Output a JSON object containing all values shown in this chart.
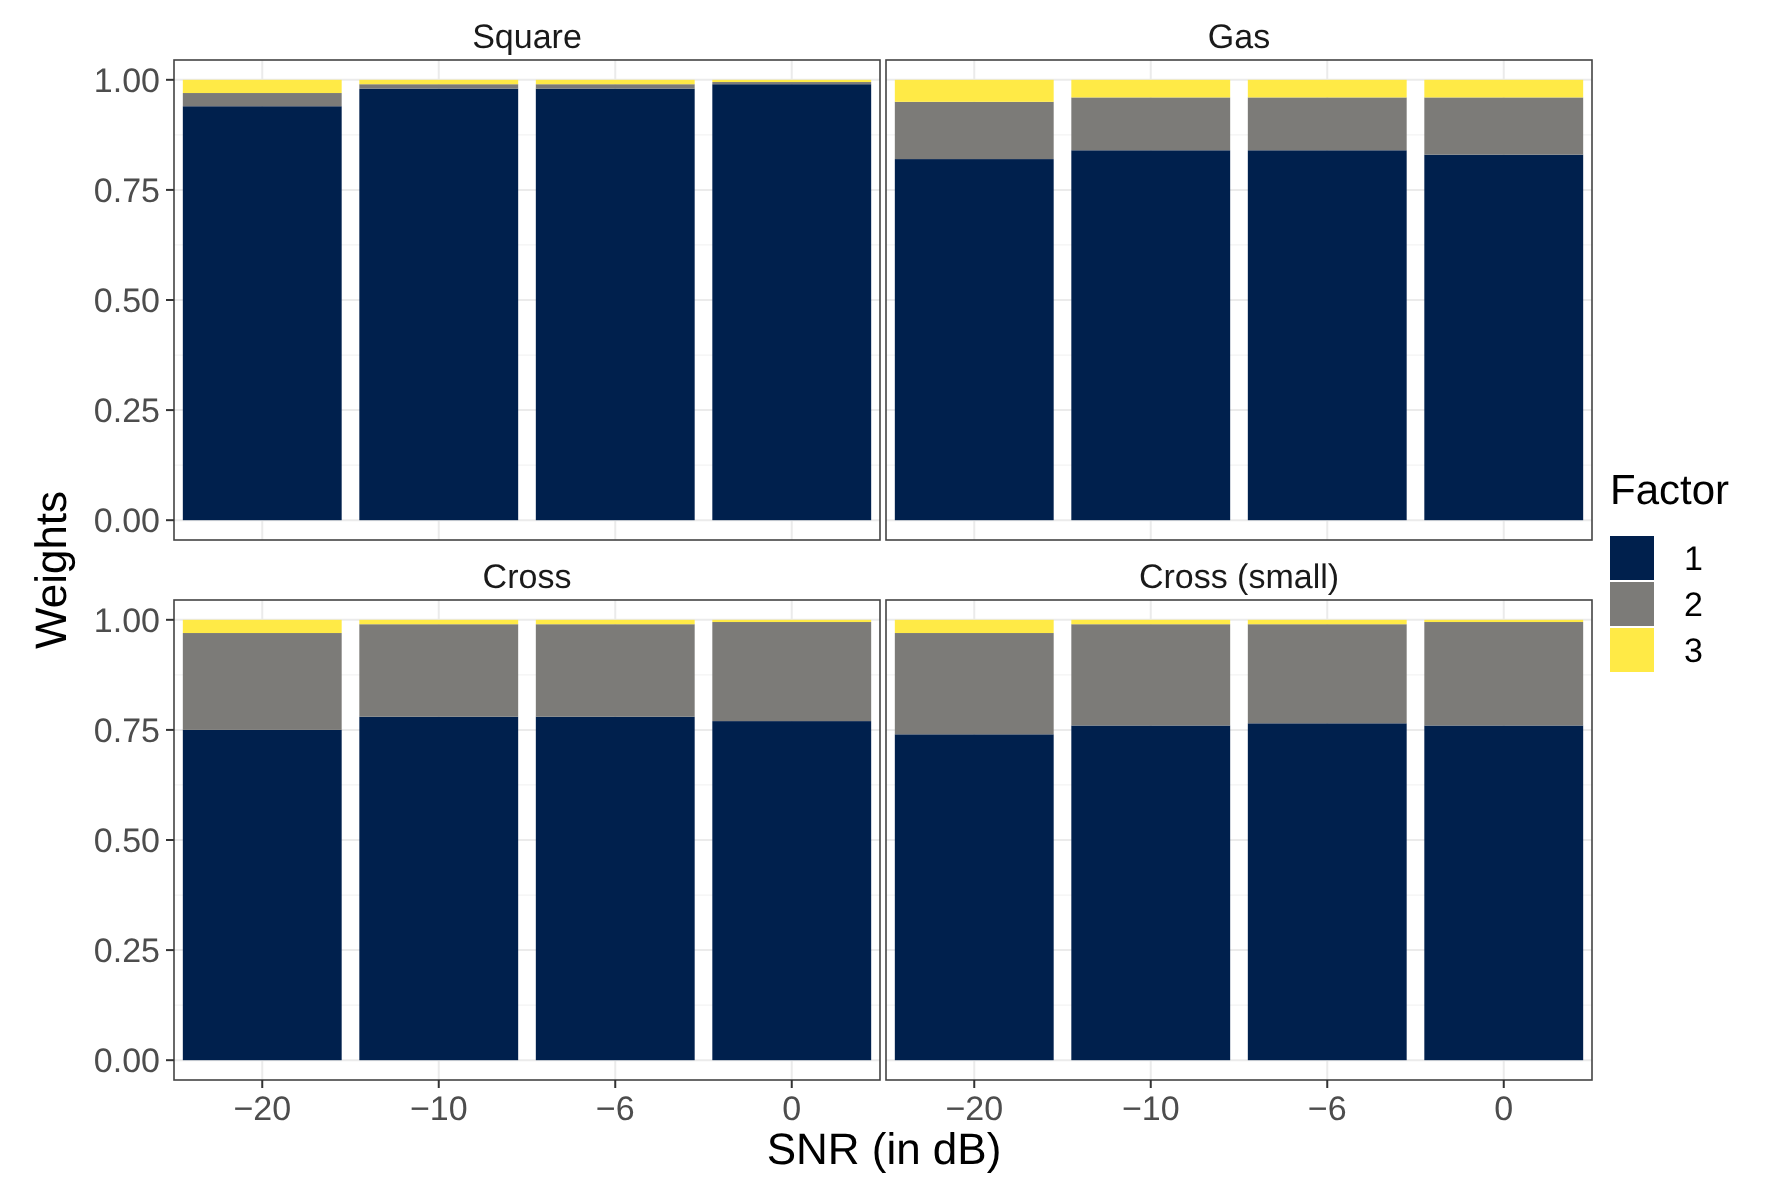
{
  "chart_data": [
    {
      "type": "bar",
      "title": "Square",
      "ylabel": "Weights",
      "legend": "right",
      "legend_title": "Factor",
      "categories": [
        "−20",
        "−10",
        "−6",
        "0"
      ],
      "stacked": true,
      "grid": true,
      "tick_labels": "y",
      "ylim": [
        -0.045,
        1.045
      ],
      "yticks": [
        {
          "value": 0,
          "label": "0.00"
        },
        {
          "value": 0.25,
          "label": "0.25"
        },
        {
          "value": 0.5,
          "label": "0.50"
        },
        {
          "value": 0.75,
          "label": "0.75"
        },
        {
          "value": 1,
          "label": "1.00"
        }
      ],
      "series": [
        {
          "name": "1",
          "color": "#00204d",
          "values": [
            0.94,
            0.98,
            0.98,
            0.99
          ]
        },
        {
          "name": "2",
          "color": "#7c7b78",
          "values": [
            0.03,
            0.01,
            0.01,
            0.005
          ]
        },
        {
          "name": "3",
          "color": "#ffea46",
          "values": [
            0.03,
            0.01,
            0.01,
            0.005
          ]
        }
      ]
    },
    {
      "type": "bar",
      "title": "Gas",
      "categories": [
        "−20",
        "−10",
        "−6",
        "0"
      ],
      "stacked": true,
      "grid": true,
      "tick_labels": false,
      "ylim": [
        -0.045,
        1.045
      ],
      "yticks": [
        0,
        0.25,
        0.5,
        0.75,
        1
      ],
      "series": [
        {
          "color": "#00204d",
          "values": [
            0.82,
            0.84,
            0.84,
            0.83
          ]
        },
        {
          "color": "#7c7b78",
          "values": [
            0.13,
            0.12,
            0.12,
            0.13
          ]
        },
        {
          "color": "#ffea46",
          "values": [
            0.05,
            0.04,
            0.04,
            0.04
          ]
        }
      ]
    },
    {
      "type": "bar",
      "title": "Cross",
      "xlabel": "SNR (in dB)",
      "categories": [
        "−20",
        "−10",
        "−6",
        "0"
      ],
      "stacked": true,
      "grid": true,
      "ylim": [
        -0.045,
        1.045
      ],
      "yticks": [
        {
          "value": 0,
          "label": "0.00"
        },
        {
          "value": 0.25,
          "label": "0.25"
        },
        {
          "value": 0.5,
          "label": "0.50"
        },
        {
          "value": 0.75,
          "label": "0.75"
        },
        {
          "value": 1,
          "label": "1.00"
        }
      ],
      "series": [
        {
          "color": "#00204d",
          "values": [
            0.75,
            0.78,
            0.78,
            0.77
          ]
        },
        {
          "color": "#7c7b78",
          "values": [
            0.22,
            0.21,
            0.21,
            0.225
          ]
        },
        {
          "color": "#ffea46",
          "values": [
            0.03,
            0.01,
            0.01,
            0.005
          ]
        }
      ]
    },
    {
      "type": "bar",
      "title": "Cross (small)",
      "categories": [
        "−20",
        "−10",
        "−6",
        "0"
      ],
      "stacked": true,
      "grid": true,
      "tick_labels": "x",
      "ylim": [
        -0.045,
        1.045
      ],
      "yticks": [
        0,
        0.25,
        0.5,
        0.75,
        1
      ],
      "series": [
        {
          "color": "#00204d",
          "values": [
            0.74,
            0.76,
            0.765,
            0.76
          ]
        },
        {
          "color": "#7c7b78",
          "values": [
            0.23,
            0.23,
            0.225,
            0.235
          ]
        },
        {
          "color": "#ffea46",
          "values": [
            0.03,
            0.01,
            0.01,
            0.005
          ]
        }
      ]
    }
  ]
}
